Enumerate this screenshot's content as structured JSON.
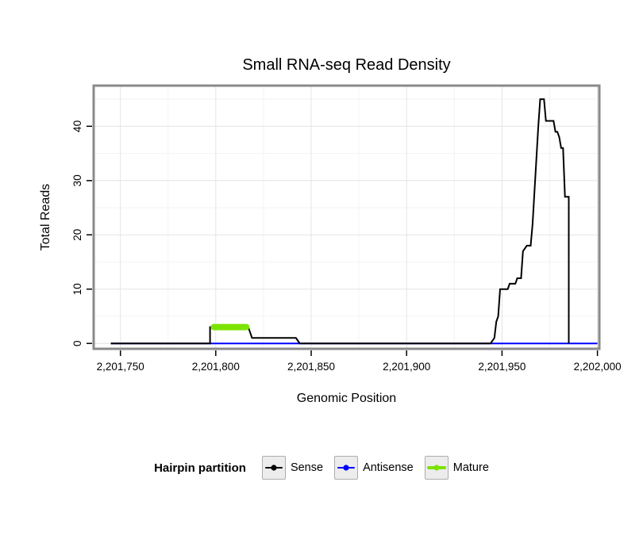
{
  "chart_data": {
    "type": "line",
    "title": "Small RNA-seq Read Density",
    "xlabel": "Genomic Position",
    "ylabel": "Total Reads",
    "x_domain": [
      2201736,
      2202001
    ],
    "y_domain": [
      -1,
      47.5
    ],
    "x_ticks": [
      {
        "value": 2201750,
        "label": "2,201,750"
      },
      {
        "value": 2201800,
        "label": "2,201,800"
      },
      {
        "value": 2201850,
        "label": "2,201,850"
      },
      {
        "value": 2201900,
        "label": "2,201,900"
      },
      {
        "value": 2201950,
        "label": "2,201,950"
      },
      {
        "value": 2202000,
        "label": "2,202,000"
      }
    ],
    "y_ticks": [
      {
        "value": 0,
        "label": "0"
      },
      {
        "value": 10,
        "label": "10"
      },
      {
        "value": 20,
        "label": "20"
      },
      {
        "value": 30,
        "label": "30"
      },
      {
        "value": 40,
        "label": "40"
      }
    ],
    "x_minor": [
      2201775,
      2201825,
      2201875,
      2201925,
      2201975
    ],
    "y_minor": [
      5,
      15,
      25,
      35,
      45
    ],
    "grid": true,
    "series": [
      {
        "name": "Antisense",
        "color": "#0000FF",
        "width": 2,
        "linecap": "butt",
        "points": [
          [
            2201745,
            0
          ],
          [
            2202000,
            0
          ]
        ]
      },
      {
        "name": "Sense",
        "color": "#000000",
        "width": 2,
        "linecap": "butt",
        "points": [
          [
            2201745,
            0
          ],
          [
            2201797,
            0
          ],
          [
            2201797,
            3
          ],
          [
            2201817,
            3
          ],
          [
            2201819,
            1
          ],
          [
            2201842,
            1
          ],
          [
            2201844,
            0
          ],
          [
            2201944,
            0
          ],
          [
            2201946,
            1
          ],
          [
            2201947,
            4
          ],
          [
            2201948,
            5
          ],
          [
            2201949,
            10
          ],
          [
            2201953,
            10
          ],
          [
            2201954,
            11
          ],
          [
            2201957,
            11
          ],
          [
            2201958,
            12
          ],
          [
            2201960,
            12
          ],
          [
            2201961,
            17
          ],
          [
            2201963,
            18
          ],
          [
            2201965,
            18
          ],
          [
            2201966,
            22
          ],
          [
            2201967,
            28
          ],
          [
            2201968,
            34
          ],
          [
            2201969,
            40
          ],
          [
            2201970,
            45
          ],
          [
            2201972,
            45
          ],
          [
            2201973,
            41
          ],
          [
            2201977,
            41
          ],
          [
            2201978,
            39
          ],
          [
            2201979,
            39
          ],
          [
            2201980,
            38
          ],
          [
            2201981,
            36
          ],
          [
            2201982,
            36
          ],
          [
            2201983,
            27
          ],
          [
            2201985,
            27
          ],
          [
            2201985,
            0
          ]
        ]
      },
      {
        "name": "Mature",
        "color": "#7CE300",
        "width": 8,
        "linecap": "round",
        "points": [
          [
            2201799,
            3
          ],
          [
            2201816,
            3
          ]
        ]
      }
    ],
    "legend": {
      "title": "Hairpin partition",
      "items": [
        {
          "label": "Sense",
          "color": "#000000",
          "key_width": 2
        },
        {
          "label": "Antisense",
          "color": "#0000FF",
          "key_width": 2
        },
        {
          "label": "Mature",
          "color": "#7CE300",
          "key_width": 4
        }
      ]
    },
    "colors": {
      "background": "#FFFFFF",
      "grid_major": "#E4E4E4",
      "grid_minor": "#F3F3F3",
      "panel_border": "#8A8A8A",
      "tick": "#000000"
    }
  }
}
